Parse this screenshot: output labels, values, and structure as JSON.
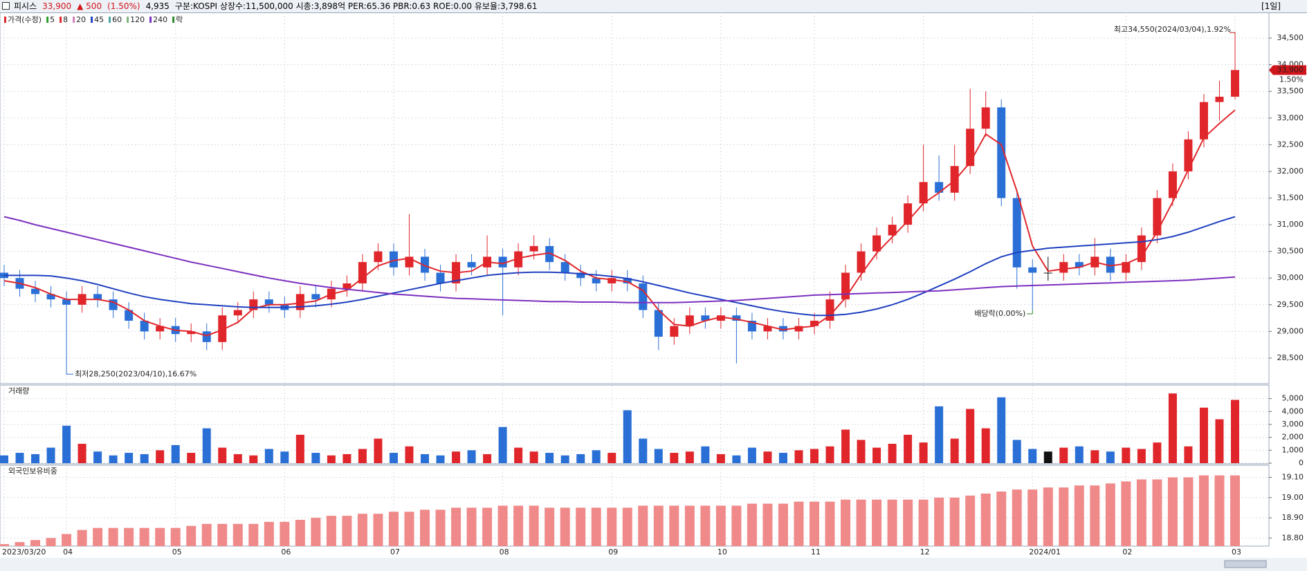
{
  "header": {
    "name": "피시스",
    "price": "33,900",
    "change": "▲ 500",
    "change_pct": "(1.50%)",
    "volume": "4,935",
    "info": "구분:KOSPI 상장수:11,500,000 시총:3,898억 PER:65.36 PBR:0.63 ROE:0.00 유보율:3,798.61",
    "period": "[1일]"
  },
  "chart_data": {
    "type": "candlestick",
    "legend_title": "가격(수정)",
    "legend_tail": "락",
    "up_color": "#e0262b",
    "down_color": "#2a6fd6",
    "flat_color": "#111111",
    "open": [
      30100,
      30000,
      29800,
      29700,
      29600,
      29500,
      29700,
      29600,
      29400,
      29200,
      29000,
      29100,
      28950,
      29000,
      28800,
      29300,
      29400,
      29600,
      29500,
      29400,
      29700,
      29600,
      29800,
      29900,
      30300,
      30500,
      30200,
      30400,
      30100,
      29900,
      30300,
      30200,
      30400,
      30200,
      30500,
      30600,
      30300,
      30100,
      30000,
      29900,
      30000,
      29900,
      29400,
      28900,
      29100,
      29300,
      29200,
      29300,
      29200,
      29000,
      29100,
      29000,
      29100,
      29200,
      29600,
      30100,
      30500,
      30800,
      31000,
      31400,
      31800,
      31600,
      32100,
      32800,
      33200,
      31500,
      30200,
      30100,
      30100,
      30300,
      30200,
      30400,
      30100,
      30300,
      30800,
      31500,
      32000,
      32600,
      33300,
      33400
    ],
    "high": [
      30250,
      30150,
      29950,
      29850,
      29750,
      29850,
      29850,
      29750,
      29550,
      29350,
      29250,
      29250,
      29150,
      29150,
      29450,
      29550,
      29750,
      29750,
      29650,
      29850,
      29850,
      29950,
      30050,
      30450,
      30650,
      30650,
      31200,
      30550,
      30250,
      30450,
      30450,
      30800,
      30550,
      30650,
      30800,
      30750,
      30450,
      30250,
      30150,
      30150,
      30150,
      30050,
      29550,
      29250,
      29450,
      29450,
      29450,
      29450,
      29350,
      29250,
      29250,
      29250,
      29350,
      29750,
      30250,
      30650,
      30950,
      31150,
      31550,
      32500,
      32300,
      32500,
      33550,
      33500,
      33350,
      31650,
      30350,
      30400,
      30450,
      30450,
      30750,
      30550,
      30450,
      30950,
      31650,
      32150,
      32750,
      33450,
      33700,
      34550
    ],
    "low": [
      29850,
      29650,
      29550,
      29450,
      28250,
      29350,
      29450,
      29250,
      29050,
      28850,
      28850,
      28800,
      28800,
      28650,
      28650,
      29150,
      29250,
      29350,
      29250,
      29250,
      29450,
      29450,
      29650,
      29750,
      30150,
      30050,
      30050,
      29950,
      29750,
      29750,
      30050,
      30050,
      29300,
      30050,
      30350,
      30150,
      29950,
      29850,
      29750,
      29750,
      29750,
      29250,
      28650,
      28750,
      28950,
      29050,
      29050,
      28400,
      28850,
      28850,
      28850,
      28850,
      28950,
      29050,
      29450,
      29950,
      30350,
      30650,
      30850,
      31250,
      31450,
      31450,
      31950,
      32650,
      31350,
      29800,
      29400,
      29950,
      29950,
      30050,
      30050,
      29950,
      29950,
      30150,
      30650,
      31350,
      31850,
      32450,
      32950,
      33350
    ],
    "close": [
      30000,
      29800,
      29700,
      29600,
      29500,
      29700,
      29600,
      29400,
      29200,
      29000,
      29100,
      28950,
      29000,
      28800,
      29300,
      29400,
      29600,
      29500,
      29400,
      29700,
      29600,
      29800,
      29900,
      30300,
      30500,
      30200,
      30400,
      30100,
      29900,
      30300,
      30200,
      30400,
      30200,
      30500,
      30600,
      30300,
      30100,
      30000,
      29900,
      30000,
      29900,
      29400,
      28900,
      29100,
      29300,
      29200,
      29300,
      29200,
      29000,
      29100,
      29000,
      29100,
      29200,
      29600,
      30100,
      30500,
      30800,
      31000,
      31400,
      31800,
      31600,
      32100,
      32800,
      33200,
      31500,
      30200,
      30100,
      30100,
      30300,
      30200,
      30400,
      30100,
      30300,
      30800,
      31500,
      32000,
      32600,
      33300,
      33400,
      33900
    ],
    "ma_series": [
      {
        "name": "5",
        "color": "#2ca02c"
      },
      {
        "name": "8",
        "color": "#e0262b",
        "values": [
          29950,
          29900,
          29820,
          29700,
          29600,
          29600,
          29600,
          29550,
          29400,
          29200,
          29100,
          29020,
          29000,
          28920,
          29030,
          29170,
          29430,
          29500,
          29500,
          29530,
          29570,
          29700,
          29770,
          30000,
          30230,
          30330,
          30370,
          30230,
          30130,
          30100,
          30130,
          30300,
          30270,
          30370,
          30430,
          30470,
          30330,
          30130,
          30000,
          29970,
          29930,
          29770,
          29400,
          29130,
          29100,
          29200,
          29270,
          29230,
          29170,
          29100,
          29030,
          29070,
          29100,
          29300,
          29630,
          30070,
          30470,
          30770,
          31070,
          31400,
          31600,
          31830,
          32170,
          32700,
          32500,
          31630,
          30600,
          30130,
          30170,
          30200,
          30300,
          30230,
          30270,
          30400,
          30870,
          31430,
          32030,
          32630,
          32900,
          33150
        ]
      },
      {
        "name": "20",
        "color": "#d17fb8"
      },
      {
        "name": "45",
        "color": "#1f3fc0",
        "values": [
          30050,
          30050,
          30050,
          30040,
          30000,
          29950,
          29880,
          29800,
          29720,
          29650,
          29600,
          29560,
          29520,
          29500,
          29480,
          29460,
          29450,
          29450,
          29450,
          29460,
          29480,
          29510,
          29550,
          29600,
          29660,
          29720,
          29780,
          29840,
          29900,
          29950,
          30000,
          30050,
          30080,
          30100,
          30110,
          30110,
          30100,
          30080,
          30060,
          30030,
          29990,
          29930,
          29860,
          29790,
          29720,
          29660,
          29600,
          29540,
          29480,
          29420,
          29370,
          29330,
          29300,
          29300,
          29320,
          29360,
          29420,
          29500,
          29600,
          29720,
          29850,
          29980,
          30120,
          30270,
          30400,
          30480,
          30520,
          30560,
          30580,
          30600,
          30620,
          30640,
          30660,
          30680,
          30720,
          30780,
          30860,
          30960,
          31060,
          31150
        ]
      },
      {
        "name": "60",
        "color": "#4aa3a3"
      },
      {
        "name": "120",
        "color": "#7fb37f"
      },
      {
        "name": "240",
        "color": "#7b2fbf",
        "values": [
          31150,
          31080,
          31000,
          30930,
          30860,
          30790,
          30720,
          30650,
          30580,
          30510,
          30440,
          30370,
          30300,
          30240,
          30180,
          30120,
          30060,
          30000,
          29950,
          29900,
          29860,
          29820,
          29790,
          29760,
          29730,
          29700,
          29680,
          29660,
          29640,
          29620,
          29610,
          29600,
          29590,
          29580,
          29570,
          29560,
          29560,
          29550,
          29550,
          29550,
          29540,
          29540,
          29540,
          29540,
          29550,
          29560,
          29570,
          29580,
          29600,
          29620,
          29640,
          29660,
          29680,
          29690,
          29700,
          29710,
          29720,
          29730,
          29740,
          29750,
          29760,
          29780,
          29800,
          29820,
          29840,
          29850,
          29860,
          29870,
          29880,
          29890,
          29900,
          29910,
          29920,
          29930,
          29940,
          29950,
          29960,
          29980,
          30000,
          30020
        ]
      }
    ],
    "ylim": [
      28020,
      34980
    ],
    "yticks": [
      {
        "value": 28500,
        "label": "28,500"
      },
      {
        "value": 29000,
        "label": "29,000"
      },
      {
        "value": 29500,
        "label": "29,500"
      },
      {
        "value": 30000,
        "label": "30,000"
      },
      {
        "value": 30500,
        "label": "30,500"
      },
      {
        "value": 31000,
        "label": "31,000"
      },
      {
        "value": 31500,
        "label": "31,500"
      },
      {
        "value": 32000,
        "label": "32,000"
      },
      {
        "value": 32500,
        "label": "32,500"
      },
      {
        "value": 33000,
        "label": "33,000"
      },
      {
        "value": 33500,
        "label": "33,500"
      },
      {
        "value": 34000,
        "label": "34,000"
      },
      {
        "value": 34500,
        "label": "34,500"
      }
    ],
    "xticks": [
      {
        "value": 0,
        "label": "2023/03/20"
      },
      {
        "value": 4,
        "label": "04"
      },
      {
        "value": 11,
        "label": "05"
      },
      {
        "value": 18,
        "label": "06"
      },
      {
        "value": 25,
        "label": "07"
      },
      {
        "value": 32,
        "label": "08"
      },
      {
        "value": 39,
        "label": "09"
      },
      {
        "value": 46,
        "label": "10"
      },
      {
        "value": 52,
        "label": "11"
      },
      {
        "value": 59,
        "label": "12"
      },
      {
        "value": 66,
        "label": "2024/01"
      },
      {
        "value": 72,
        "label": "02"
      },
      {
        "value": 79,
        "label": "03"
      }
    ],
    "price_marker": {
      "value": 33900,
      "label": "33,900",
      "pct": "1.50%"
    },
    "max_annotation": "최고34,550(2024/03/04),1.92%",
    "min_annotation": "최저28,250(2023/04/10),16.67%",
    "dividend_annotation": "배당락(0.00%)",
    "volume": {
      "title": "거래량",
      "values": [
        600,
        800,
        700,
        1200,
        2900,
        1500,
        900,
        600,
        800,
        700,
        1000,
        1400,
        800,
        2700,
        1200,
        700,
        600,
        1100,
        900,
        2200,
        800,
        600,
        700,
        1100,
        1900,
        800,
        1300,
        700,
        600,
        900,
        1000,
        700,
        2800,
        1200,
        900,
        800,
        600,
        700,
        1000,
        800,
        4100,
        1900,
        1100,
        800,
        900,
        1300,
        700,
        600,
        1200,
        900,
        800,
        1000,
        1100,
        1300,
        2600,
        1800,
        1200,
        1500,
        2200,
        1600,
        4400,
        1900,
        4200,
        2700,
        5100,
        1800,
        1100,
        900,
        1200,
        1300,
        1000,
        900,
        1200,
        1100,
        1600,
        5400,
        1300,
        4300,
        3400,
        4900
      ],
      "ylim": [
        0,
        6050
      ],
      "yticks": [
        0,
        {
          "value": 1000,
          "label": "1,000"
        },
        {
          "value": 2000,
          "label": "2,000"
        },
        {
          "value": 3000,
          "label": "3,000"
        },
        {
          "value": 4000,
          "label": "4,000"
        },
        {
          "value": 5000,
          "label": "5,000"
        }
      ]
    },
    "foreign": {
      "title": "외국인보유비중",
      "color": "#f08a8a",
      "values": [
        18.77,
        18.78,
        18.79,
        18.8,
        18.82,
        18.84,
        18.85,
        18.85,
        18.85,
        18.85,
        18.85,
        18.85,
        18.86,
        18.87,
        18.87,
        18.87,
        18.87,
        18.88,
        18.88,
        18.89,
        18.9,
        18.91,
        18.91,
        18.92,
        18.92,
        18.93,
        18.93,
        18.94,
        18.94,
        18.95,
        18.95,
        18.95,
        18.96,
        18.96,
        18.96,
        18.95,
        18.95,
        18.95,
        18.95,
        18.95,
        18.95,
        18.96,
        18.96,
        18.96,
        18.96,
        18.96,
        18.96,
        18.96,
        18.97,
        18.97,
        18.97,
        18.98,
        18.98,
        18.98,
        18.99,
        18.99,
        18.99,
        18.99,
        18.99,
        18.99,
        19.0,
        19.0,
        19.01,
        19.02,
        19.03,
        19.04,
        19.04,
        19.05,
        19.05,
        19.06,
        19.06,
        19.07,
        19.08,
        19.09,
        19.09,
        19.1,
        19.1,
        19.11,
        19.11,
        19.11
      ],
      "ylim": [
        18.76,
        19.16
      ],
      "yticks": [
        {
          "value": 18.8,
          "label": "18.80"
        },
        {
          "value": 18.9,
          "label": "18.90"
        },
        {
          "value": 19.0,
          "label": "19.00"
        },
        {
          "value": 19.1,
          "label": "19.10"
        }
      ]
    }
  }
}
